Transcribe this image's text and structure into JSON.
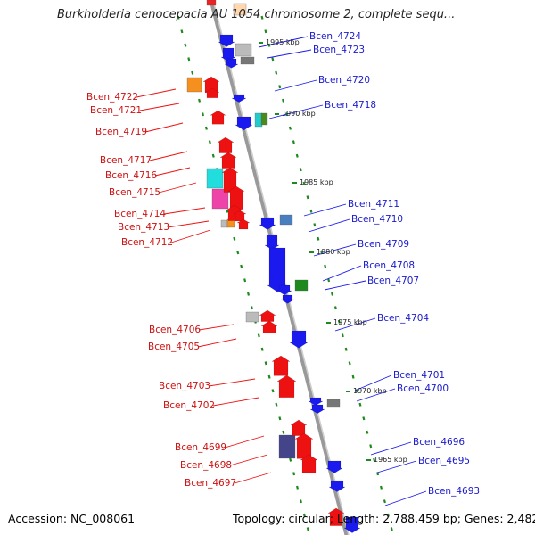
{
  "title": "Burkholderia cenocepacia AU 1054 chromosome 2, complete sequ...",
  "footer": {
    "accession": "Accession: NC_008061",
    "summary": "Topology: circular; Length: 2,788,459 bp; Genes: 2,482"
  },
  "colors": {
    "plus": "#1a1aee",
    "minus": "#ee1111",
    "tick": "#1e8a1e",
    "line": "#999999"
  },
  "kbp_marks": [
    "1995 kbp",
    "1990 kbp",
    "1985 kbp",
    "1980 kbp",
    "1975 kbp",
    "1970 kbp",
    "1965 kbp"
  ],
  "genes_right": [
    "Bcen_4724",
    "Bcen_4723",
    "Bcen_4720",
    "Bcen_4718",
    "Bcen_4711",
    "Bcen_4710",
    "Bcen_4709",
    "Bcen_4708",
    "Bcen_4707",
    "Bcen_4704",
    "Bcen_4701",
    "Bcen_4700",
    "Bcen_4696",
    "Bcen_4695",
    "Bcen_4693"
  ],
  "genes_left": [
    "Bcen_4722",
    "Bcen_4721",
    "Bcen_4719",
    "Bcen_4717",
    "Bcen_4716",
    "Bcen_4715",
    "Bcen_4714",
    "Bcen_4713",
    "Bcen_4712",
    "Bcen_4706",
    "Bcen_4705",
    "Bcen_4703",
    "Bcen_4702",
    "Bcen_4699",
    "Bcen_4698",
    "Bcen_4697"
  ]
}
